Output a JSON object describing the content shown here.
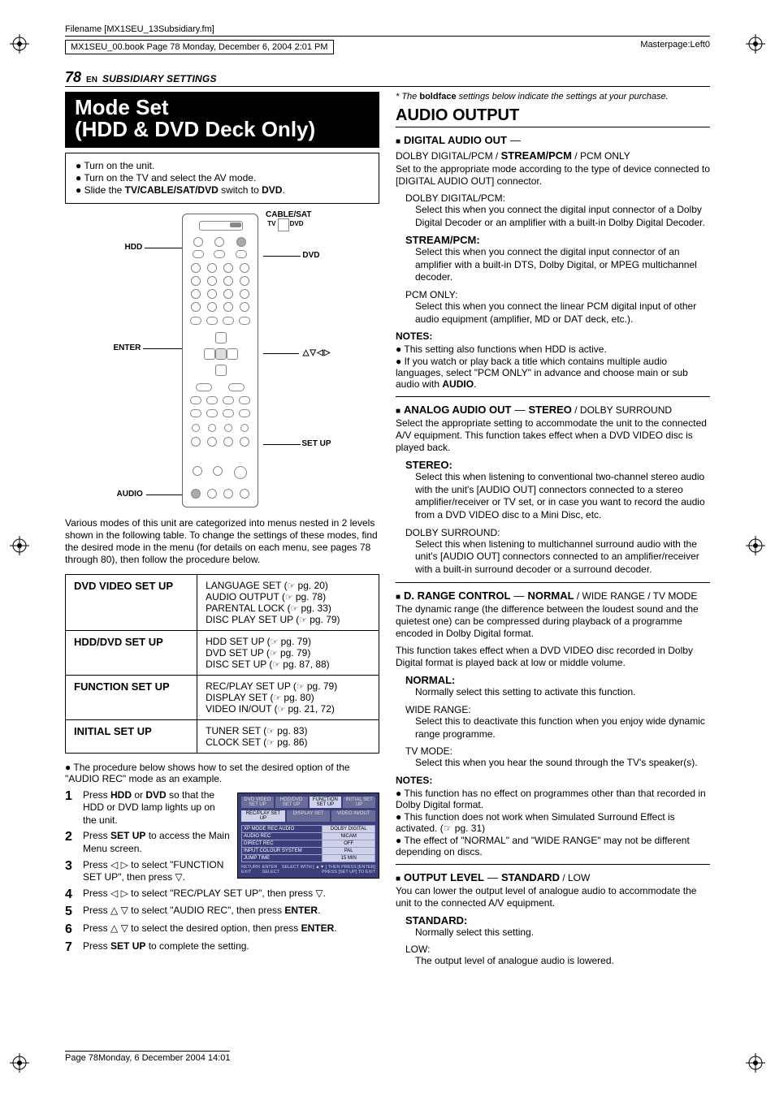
{
  "meta": {
    "filename": "Filename [MX1SEU_13Subsidiary.fm]",
    "book_line": "MX1SEU_00.book  Page 78  Monday, December 6, 2004  2:01 PM",
    "masterpage": "Masterpage:Left0",
    "footer": "Page 78Monday, 6 December 2004  14:01"
  },
  "header": {
    "page_number": "78",
    "lang": "EN",
    "section": "SUBSIDIARY SETTINGS"
  },
  "title": {
    "line1": "Mode Set",
    "line2": "(HDD & DVD Deck Only)"
  },
  "setup_box": {
    "b1": "Turn on the unit.",
    "b2": "Turn on the TV and select the AV mode.",
    "b3_pre": "Slide the ",
    "b3_bold": "TV/CABLE/SAT/DVD",
    "b3_mid": " switch to ",
    "b3_bold2": "DVD",
    "b3_end": "."
  },
  "remote_labels": {
    "cable": "CABLE/SAT",
    "tv": "TV",
    "dvd": "DVD",
    "hdd": "HDD",
    "dvd_side": "DVD",
    "enter": "ENTER",
    "nav": "△▽◁▷",
    "setup": "SET UP",
    "audio": "AUDIO"
  },
  "intro_para": "Various modes of this unit are categorized into menus nested in 2 levels shown in the following table. To change the settings of these modes, find the desired mode in the menu (for details on each menu, see pages 78 through 80), then follow the procedure below.",
  "menu_table": [
    {
      "head": "DVD VIDEO SET UP",
      "items": [
        {
          "t": "LANGUAGE SET",
          "pg": "pg. 20"
        },
        {
          "t": "AUDIO OUTPUT",
          "pg": "pg. 78"
        },
        {
          "t": "PARENTAL LOCK",
          "pg": "pg. 33"
        },
        {
          "t": "DISC PLAY SET UP",
          "pg": "pg. 79"
        }
      ]
    },
    {
      "head": "HDD/DVD SET UP",
      "items": [
        {
          "t": "HDD SET UP",
          "pg": "pg. 79"
        },
        {
          "t": "DVD SET UP",
          "pg": "pg. 79"
        },
        {
          "t": "DISC SET UP",
          "pg": "pg. 87, 88"
        }
      ]
    },
    {
      "head": "FUNCTION SET UP",
      "items": [
        {
          "t": "REC/PLAY SET UP",
          "pg": "pg. 79"
        },
        {
          "t": "DISPLAY SET",
          "pg": "pg. 80"
        },
        {
          "t": "VIDEO IN/OUT",
          "pg": "pg. 21, 72"
        }
      ]
    },
    {
      "head": "INITIAL SET UP",
      "items": [
        {
          "t": "TUNER SET",
          "pg": "pg. 83"
        },
        {
          "t": "CLOCK SET",
          "pg": "pg. 86"
        }
      ]
    }
  ],
  "pre_steps_bullet": "The procedure below shows how to set the desired option of the \"AUDIO REC\" mode as an example.",
  "steps": [
    {
      "n": "1",
      "pre": "Press ",
      "b": "HDD",
      "mid": " or ",
      "b2": "DVD",
      "post": " so that the HDD or DVD lamp lights up on the unit."
    },
    {
      "n": "2",
      "pre": "Press ",
      "b": "SET UP",
      "post": " to access the Main Menu screen."
    },
    {
      "n": "3",
      "pre": "Press ◁ ▷ to select \"FUNCTION SET UP\", then press ▽."
    },
    {
      "n": "4",
      "pre": "Press ◁ ▷ to select \"REC/PLAY SET UP\", then press ▽."
    },
    {
      "n": "5",
      "pre": "Press △ ▽ to select \"AUDIO REC\", then press ",
      "b": "ENTER",
      "post": "."
    },
    {
      "n": "6",
      "pre": "Press △ ▽ to select the desired option, then press ",
      "b": "ENTER",
      "post": "."
    },
    {
      "n": "7",
      "pre": "Press ",
      "b": "SET UP",
      "post": " to complete the setting."
    }
  ],
  "osd": {
    "tabs": [
      "DVD VIDEO SET UP",
      "HDD/DVD SET UP",
      "FUNCTION SET UP",
      "INITIAL SET UP"
    ],
    "subtabs": [
      "REC/PLAY SET UP",
      "DISPLAY SET",
      "VIDEO IN/OUT"
    ],
    "rows": [
      {
        "k": "XP MODE REC AUDIO",
        "v": "DOLBY DIGITAL"
      },
      {
        "k": "AUDIO REC",
        "v": "NICAM"
      },
      {
        "k": "DIRECT REC",
        "v": "OFF"
      },
      {
        "k": "INPUT COLOUR SYSTEM",
        "v": "PAL"
      },
      {
        "k": "JUMP TIME",
        "v": "15 MIN"
      }
    ],
    "foot_left": "RETURN\nEXIT",
    "foot_mid": "ENTER\nSELECT",
    "foot_right": "SELECT WITH [ ▲▼ ] THEN PRESS [ENTER]\nPRESS [SET UP] TO EXIT"
  },
  "right": {
    "footnote_pre": "* The ",
    "footnote_b": "boldface",
    "footnote_post": " settings below indicate the settings at your purchase.",
    "audio_output": "AUDIO OUTPUT",
    "digital": {
      "label": "DIGITAL AUDIO OUT",
      "opts_html": "DOLBY DIGITAL/PCM / <b>STREAM/PCM</b> / PCM ONLY",
      "intro": "Set to the appropriate mode according to the type of device connected to [DIGITAL AUDIO OUT] connector.",
      "ddpcm_h": "DOLBY DIGITAL/PCM:",
      "ddpcm": "Select this when you connect the digital input connector of a Dolby Digital Decoder or an amplifier with a built-in Dolby Digital Decoder.",
      "stream_h": "STREAM/PCM:",
      "stream": "Select this when you connect the digital input connector of an amplifier with a built-in DTS, Dolby Digital, or MPEG multichannel decoder.",
      "pcm_h": "PCM ONLY:",
      "pcm": "Select this when you connect the linear PCM digital input of other audio equipment (amplifier, MD or DAT deck, etc.).",
      "notes": [
        "This setting also functions when HDD is active.",
        "If you watch or play back a title which contains multiple audio languages, select \"PCM ONLY\" in advance and choose main or sub audio with <b>AUDIO</b>."
      ]
    },
    "analog": {
      "label": "ANALOG AUDIO OUT",
      "opts_html": "<b>STEREO</b> / DOLBY SURROUND",
      "intro": "Select the appropriate setting to accommodate the unit to the connected A/V equipment. This function takes effect when a DVD VIDEO disc is played back.",
      "stereo_h": "STEREO:",
      "stereo": "Select this when listening to conventional two-channel stereo audio with the unit's [AUDIO OUT] connectors connected to a stereo amplifier/receiver or TV set, or in case you want to record the audio from a DVD VIDEO disc to a Mini Disc, etc.",
      "ds_h": "DOLBY SURROUND:",
      "ds": "Select this when listening to multichannel surround audio with the unit's [AUDIO OUT] connectors connected to an amplifier/receiver with a built-in surround decoder or a surround decoder."
    },
    "drange": {
      "label": "D. RANGE CONTROL",
      "opts_html": "<b>NORMAL</b> / WIDE RANGE / TV MODE",
      "intro1": "The dynamic range (the difference between the loudest sound and the quietest one) can be compressed during playback of a programme encoded in Dolby Digital format.",
      "intro2": "This function takes effect when a DVD VIDEO disc recorded in Dolby Digital format is played back at low or middle volume.",
      "normal_h": "NORMAL:",
      "normal": "Normally select this setting to activate this function.",
      "wide_h": "WIDE RANGE:",
      "wide": "Select this to deactivate this function when you enjoy wide dynamic range programme.",
      "tv_h": "TV MODE:",
      "tv": "Select this when you hear the sound through the TV's speaker(s).",
      "notes": [
        "This function has no effect on programmes other than that recorded in Dolby Digital format.",
        "This function does not work when Simulated Surround Effect is activated. (☞ pg. 31)",
        "The effect of \"NORMAL\" and \"WIDE RANGE\" may not be different depending on discs."
      ]
    },
    "output": {
      "label": "OUTPUT LEVEL",
      "opts_html": "<b>STANDARD</b> / LOW",
      "intro": "You can lower the output level of analogue audio to accommodate the unit to the connected A/V equipment.",
      "std_h": "STANDARD:",
      "std": "Normally select this setting.",
      "low_h": "LOW:",
      "low": "The output level of analogue audio is lowered."
    },
    "notes_label": "NOTES:"
  }
}
